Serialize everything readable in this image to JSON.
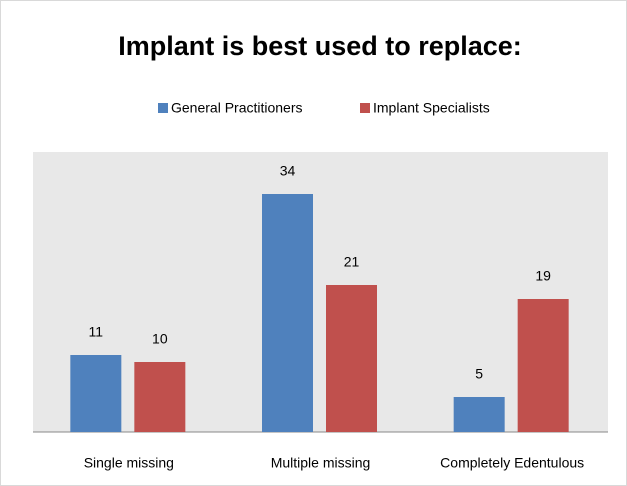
{
  "chart_data": {
    "type": "bar",
    "title": "Implant is best used to replace:",
    "categories": [
      "Single missing",
      "Multiple missing",
      "Completely Edentulous"
    ],
    "series": [
      {
        "name": "General Practitioners",
        "color": "#4f81bd",
        "values": [
          11,
          34,
          5
        ]
      },
      {
        "name": "Implant Specialists",
        "color": "#c0504d",
        "values": [
          10,
          21,
          19
        ]
      }
    ],
    "ylim": [
      0,
      40
    ],
    "legend": "top"
  }
}
